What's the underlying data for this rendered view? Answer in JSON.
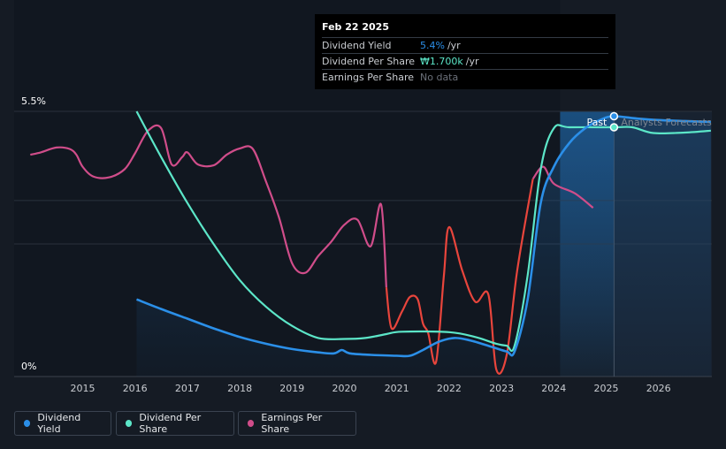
{
  "tooltip": {
    "date": "Feb 22 2025",
    "rows": [
      {
        "label": "Dividend Yield",
        "value": "5.4%",
        "unit": "/yr",
        "color": "#2b8fe8"
      },
      {
        "label": "Dividend Per Share",
        "value": "₩1.700k",
        "unit": "/yr",
        "color": "#5ce6c8"
      },
      {
        "label": "Earnings Per Share",
        "value": "No data",
        "unit": "",
        "color": "#6b7079"
      }
    ]
  },
  "legend": [
    {
      "label": "Dividend Yield",
      "color": "#2b8fe8"
    },
    {
      "label": "Dividend Per Share",
      "color": "#5ce6c8"
    },
    {
      "label": "Earnings Per Share",
      "color": "#d04d8a"
    }
  ],
  "chart_data": {
    "type": "line",
    "y_ticks": [
      "5.5%",
      "0%"
    ],
    "ylim": [
      0,
      5.5
    ],
    "xlim": [
      2014.6,
      2027.0
    ],
    "x_ticks": [
      "2015",
      "2016",
      "2017",
      "2018",
      "2019",
      "2020",
      "2021",
      "2022",
      "2023",
      "2024",
      "2025",
      "2026"
    ],
    "past_label": "Past",
    "forecast_label": "Analysts Forecasts",
    "forecast_start": 2025.15,
    "grid": true,
    "series": [
      {
        "name": "Dividend Yield",
        "color": "#2b8fe8",
        "points": [
          [
            2016.03,
            1.6
          ],
          [
            2016.5,
            1.4
          ],
          [
            2017.0,
            1.2
          ],
          [
            2017.5,
            1.0
          ],
          [
            2018.0,
            0.82
          ],
          [
            2018.5,
            0.68
          ],
          [
            2019.0,
            0.57
          ],
          [
            2019.5,
            0.5
          ],
          [
            2019.8,
            0.48
          ],
          [
            2019.95,
            0.55
          ],
          [
            2020.1,
            0.48
          ],
          [
            2020.5,
            0.45
          ],
          [
            2021.0,
            0.43
          ],
          [
            2021.25,
            0.43
          ],
          [
            2021.5,
            0.55
          ],
          [
            2021.8,
            0.72
          ],
          [
            2022.1,
            0.8
          ],
          [
            2022.4,
            0.75
          ],
          [
            2022.8,
            0.62
          ],
          [
            2023.1,
            0.52
          ],
          [
            2023.25,
            0.52
          ],
          [
            2023.5,
            1.6
          ],
          [
            2023.75,
            3.6
          ],
          [
            2024.0,
            4.35
          ],
          [
            2024.3,
            4.85
          ],
          [
            2024.6,
            5.15
          ],
          [
            2024.9,
            5.33
          ],
          [
            2025.15,
            5.4
          ],
          [
            2025.6,
            5.35
          ],
          [
            2026.0,
            5.32
          ],
          [
            2026.5,
            5.3
          ],
          [
            2027.0,
            5.28
          ]
        ]
      },
      {
        "name": "Dividend Per Share",
        "color": "#5ce6c8",
        "points": [
          [
            2016.03,
            5.5
          ],
          [
            2016.5,
            4.55
          ],
          [
            2017.0,
            3.6
          ],
          [
            2017.5,
            2.75
          ],
          [
            2018.0,
            2.0
          ],
          [
            2018.5,
            1.45
          ],
          [
            2019.0,
            1.05
          ],
          [
            2019.5,
            0.8
          ],
          [
            2020.0,
            0.78
          ],
          [
            2020.4,
            0.8
          ],
          [
            2020.8,
            0.88
          ],
          [
            2021.1,
            0.93
          ],
          [
            2022.0,
            0.92
          ],
          [
            2022.5,
            0.82
          ],
          [
            2022.9,
            0.68
          ],
          [
            2023.1,
            0.64
          ],
          [
            2023.25,
            0.64
          ],
          [
            2023.5,
            2.1
          ],
          [
            2023.75,
            4.3
          ],
          [
            2024.0,
            5.15
          ],
          [
            2024.3,
            5.17
          ],
          [
            2025.15,
            5.17
          ],
          [
            2025.5,
            5.17
          ],
          [
            2025.9,
            5.05
          ],
          [
            2026.5,
            5.06
          ],
          [
            2027.0,
            5.1
          ]
        ]
      },
      {
        "name": "Earnings Per Share",
        "color": "#d04d8a",
        "points": [
          [
            2014.0,
            4.6
          ],
          [
            2014.2,
            4.65
          ],
          [
            2014.5,
            4.75
          ],
          [
            2014.75,
            4.72
          ],
          [
            2014.88,
            4.6
          ],
          [
            2015.0,
            4.35
          ],
          [
            2015.2,
            4.15
          ],
          [
            2015.5,
            4.13
          ],
          [
            2015.8,
            4.3
          ],
          [
            2016.0,
            4.63
          ],
          [
            2016.25,
            5.1
          ],
          [
            2016.5,
            5.15
          ],
          [
            2016.7,
            4.4
          ],
          [
            2016.9,
            4.55
          ],
          [
            2017.0,
            4.65
          ],
          [
            2017.2,
            4.4
          ],
          [
            2017.5,
            4.38
          ],
          [
            2017.75,
            4.6
          ],
          [
            2018.0,
            4.73
          ],
          [
            2018.25,
            4.72
          ],
          [
            2018.5,
            4.05
          ],
          [
            2018.75,
            3.3
          ],
          [
            2019.0,
            2.35
          ],
          [
            2019.25,
            2.15
          ],
          [
            2019.5,
            2.5
          ],
          [
            2019.75,
            2.8
          ],
          [
            2020.0,
            3.15
          ],
          [
            2020.25,
            3.25
          ],
          [
            2020.5,
            2.7
          ],
          [
            2020.7,
            3.57
          ],
          [
            2020.8,
            1.85
          ],
          [
            2020.9,
            1.0
          ],
          [
            2021.1,
            1.35
          ],
          [
            2021.25,
            1.65
          ],
          [
            2021.4,
            1.6
          ],
          [
            2021.5,
            1.1
          ],
          [
            2021.6,
            0.9
          ],
          [
            2021.75,
            0.3
          ],
          [
            2021.9,
            2.1
          ],
          [
            2022.0,
            3.1
          ],
          [
            2022.25,
            2.2
          ],
          [
            2022.5,
            1.55
          ],
          [
            2022.75,
            1.7
          ],
          [
            2022.9,
            0.15
          ],
          [
            2023.1,
            0.45
          ],
          [
            2023.3,
            2.2
          ],
          [
            2023.6,
            4.1
          ],
          [
            2023.8,
            4.35
          ],
          [
            2024.0,
            4.0
          ],
          [
            2024.4,
            3.8
          ],
          [
            2024.75,
            3.5
          ]
        ]
      }
    ],
    "markers": [
      {
        "series": "Dividend Yield",
        "x": 2025.15,
        "y": 5.4
      },
      {
        "series": "Dividend Per Share",
        "x": 2025.15,
        "y": 5.17
      }
    ]
  }
}
